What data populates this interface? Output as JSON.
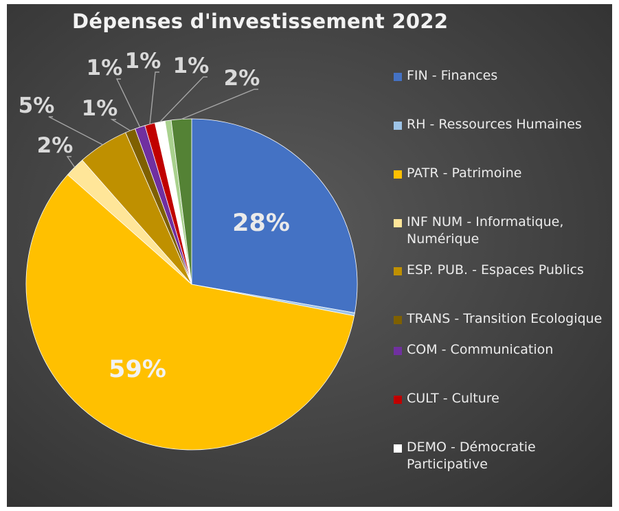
{
  "chart_data": {
    "type": "pie",
    "title": "Dépenses d'investissement 2022",
    "legend_position": "right",
    "slices": [
      {
        "name": "FIN - Finances",
        "value": 28,
        "label": "28%",
        "color": "#4472c4"
      },
      {
        "name": "RH - Ressources Humaines",
        "value": 0.3,
        "label": "",
        "color": "#9dc3e6"
      },
      {
        "name": "PATR - Patrimoine",
        "value": 59,
        "label": "59%",
        "color": "#ffc000"
      },
      {
        "name": "INF NUM - Informatique, Numérique",
        "value": 2,
        "label": "2%",
        "color": "#ffe699"
      },
      {
        "name": "ESP. PUB. - Espaces Publics",
        "value": 5,
        "label": "5%",
        "color": "#bf9000"
      },
      {
        "name": "TRANS - Transition Ecologique",
        "value": 1,
        "label": "1%",
        "color": "#7f6000"
      },
      {
        "name": "COM - Communication",
        "value": 1,
        "label": "1%",
        "color": "#7030a0"
      },
      {
        "name": "CULT - Culture",
        "value": 1,
        "label": "1%",
        "color": "#c00000"
      },
      {
        "name": "DEMO - Démocratie Participative",
        "value": 1,
        "label": "1%",
        "color": "#ffffff"
      },
      {
        "name": "",
        "value": 0.6,
        "label": "",
        "color": "#a9d18e"
      },
      {
        "name": "",
        "value": 2,
        "label": "2%",
        "color": "#548235"
      }
    ]
  }
}
